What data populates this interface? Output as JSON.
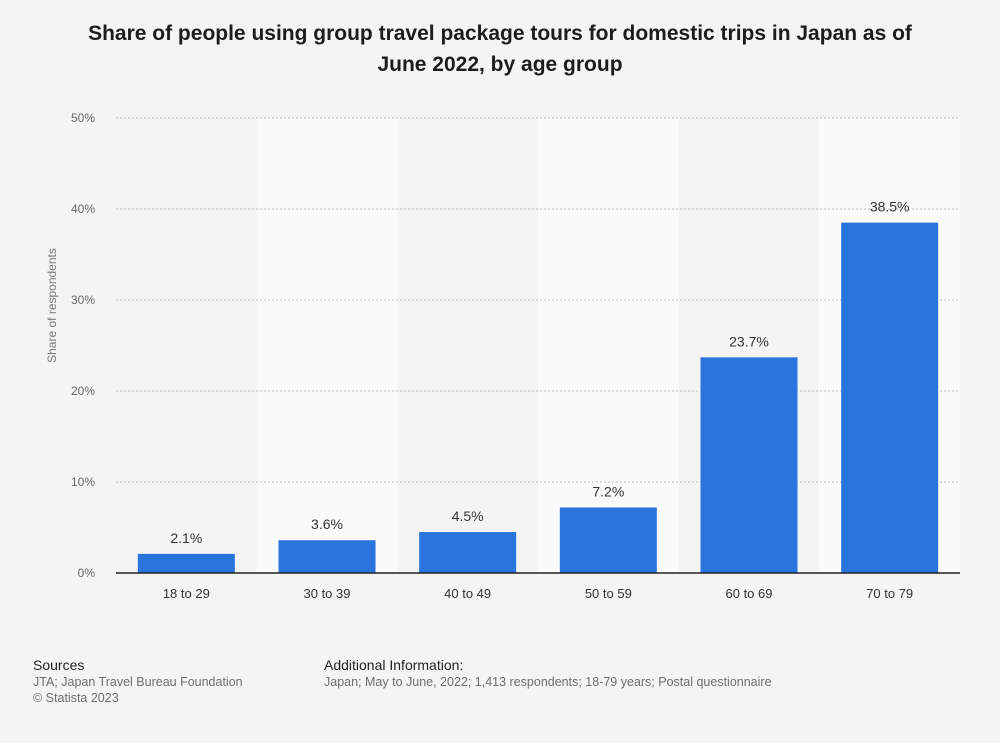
{
  "chart_data": {
    "type": "bar",
    "title": "Share of people using group travel package tours for domestic trips in Japan as of June 2022, by age group",
    "title_lines": [
      "Share of people using group travel package tours for domestic trips in Japan as of",
      "June 2022, by age group"
    ],
    "categories": [
      "18 to 29",
      "30 to 39",
      "40 to 49",
      "50 to 59",
      "60 to 69",
      "70 to 79"
    ],
    "values": [
      2.1,
      3.6,
      4.5,
      7.2,
      23.7,
      38.5
    ],
    "value_labels": [
      "2.1%",
      "3.6%",
      "4.5%",
      "7.2%",
      "23.7%",
      "38.5%"
    ],
    "xlabel": "",
    "ylabel": "Share of respondents",
    "ylim": [
      0,
      50
    ],
    "yticks": [
      0,
      10,
      20,
      30,
      40,
      50
    ],
    "ytick_labels": [
      "0%",
      "10%",
      "20%",
      "30%",
      "40%",
      "50%"
    ],
    "grid": true,
    "bar_color": "#2a74de"
  },
  "footer": {
    "sources_heading": "Sources",
    "sources_lines": [
      "JTA; Japan Travel Bureau Foundation",
      "© Statista 2023"
    ],
    "additional_heading": "Additional Information:",
    "additional_lines": [
      "Japan; May to June, 2022; 1,413 respondents; 18-79 years; Postal questionnaire"
    ]
  }
}
